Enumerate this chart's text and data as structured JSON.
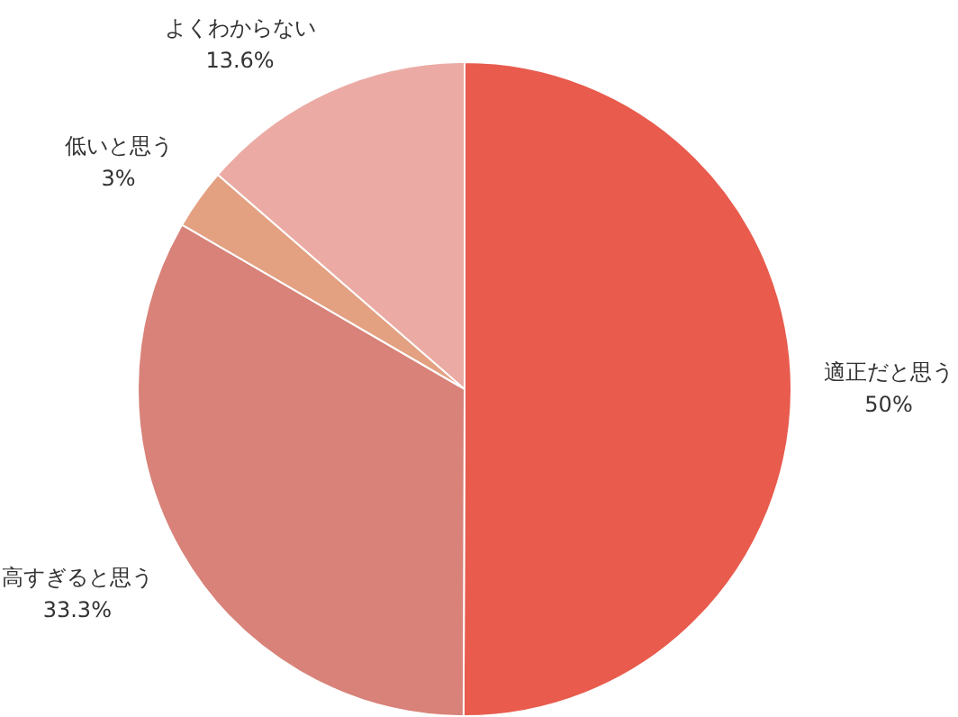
{
  "chart_data": {
    "type": "pie",
    "categories": [
      "適正だと思う",
      "高すぎると思う",
      "低いと思う",
      "よくわからない"
    ],
    "values": [
      50,
      33.3,
      3,
      13.6
    ],
    "colors": [
      "#e85b4d",
      "#d88279",
      "#e3a182",
      "#ebaba4"
    ],
    "value_labels": [
      "50%",
      "33.3%",
      "3%",
      "13.6%"
    ],
    "legend": false
  }
}
